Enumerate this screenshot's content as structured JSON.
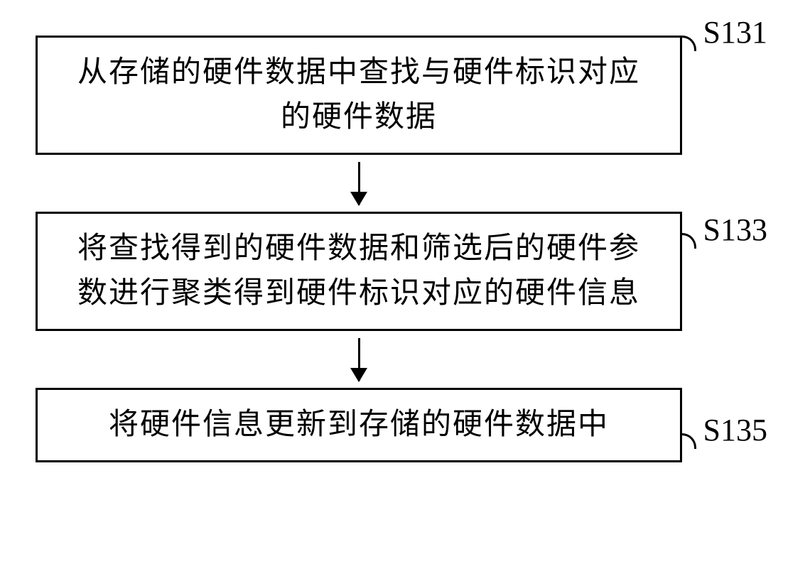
{
  "flowchart": {
    "type": "flowchart",
    "background_color": "#ffffff",
    "node_border_color": "#000000",
    "node_border_width": 3,
    "text_color": "#000000",
    "font_family": "KaiTi",
    "font_size": 42,
    "label_font_family": "Times New Roman",
    "label_font_size": 44,
    "arrow_color": "#000000",
    "arrow_width": 3,
    "nodes": [
      {
        "id": "s131",
        "label": "S131",
        "text_line1": "从存储的硬件数据中查找与硬件标识对应",
        "text_line2": "的硬件数据"
      },
      {
        "id": "s133",
        "label": "S133",
        "text_line1": "将查找得到的硬件数据和筛选后的硬件参",
        "text_line2": "数进行聚类得到硬件标识对应的硬件信息"
      },
      {
        "id": "s135",
        "label": "S135",
        "text": "将硬件信息更新到存储的硬件数据中"
      }
    ],
    "edges": [
      {
        "from": "s131",
        "to": "s133"
      },
      {
        "from": "s133",
        "to": "s135"
      }
    ]
  }
}
